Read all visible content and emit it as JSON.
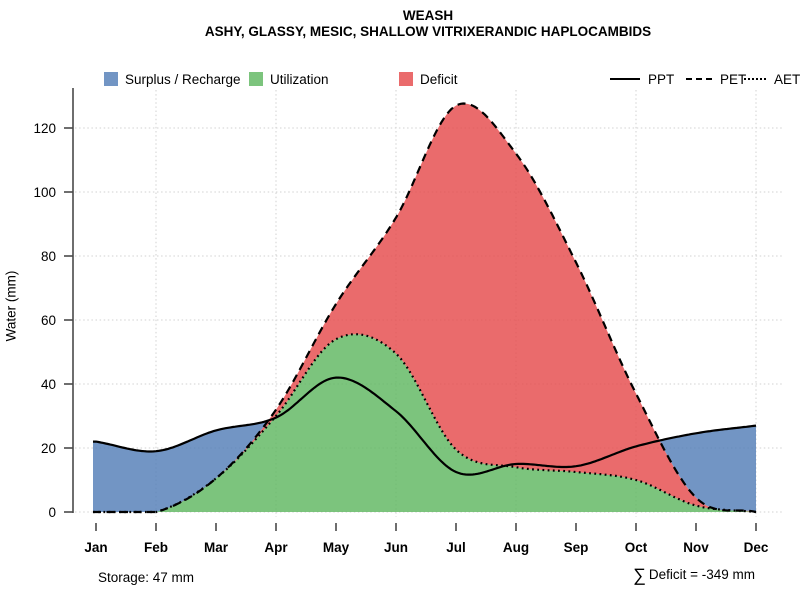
{
  "title": "WEASH",
  "subtitle": "ASHY, GLASSY, MESIC, SHALLOW VITRIXERANDIC HAPLOCAMBIDS",
  "ylabel": "Water (mm)",
  "annotations": {
    "storage": "Storage: 47 mm",
    "deficit_sigma": "∑",
    "deficit_text": "Deficit = -349 mm"
  },
  "legend": {
    "fills": [
      {
        "label": "Surplus / Recharge",
        "color": "#7295C4"
      },
      {
        "label": "Utilization",
        "color": "#7CC47D"
      },
      {
        "label": "Deficit",
        "color": "#EA6B6C"
      }
    ],
    "lines": [
      {
        "label": "PPT",
        "style": "solid"
      },
      {
        "label": "PET",
        "style": "dashed"
      },
      {
        "label": "AET",
        "style": "dotted"
      }
    ]
  },
  "chart_data": {
    "type": "area",
    "title": "WEASH",
    "subtitle": "ASHY, GLASSY, MESIC, SHALLOW VITRIXERANDIC HAPLOCAMBIDS",
    "xlabel": "",
    "ylabel": "Water (mm)",
    "categories": [
      "Jan",
      "Feb",
      "Mar",
      "Apr",
      "May",
      "Jun",
      "Jul",
      "Aug",
      "Sep",
      "Oct",
      "Nov",
      "Dec"
    ],
    "yticks": [
      0,
      20,
      40,
      60,
      80,
      100,
      120
    ],
    "ylim": [
      0,
      135
    ],
    "grid": {
      "horizontal": true,
      "vertical_month_indices": [
        1,
        3,
        5,
        7,
        9,
        11
      ]
    },
    "legend_position": "top",
    "series": [
      {
        "name": "PPT",
        "style": "solid",
        "color": "#000000",
        "values": [
          22,
          19,
          25.5,
          29.5,
          42,
          31.5,
          12.5,
          15,
          14.3,
          20.5,
          24.6,
          27
        ]
      },
      {
        "name": "PET",
        "style": "dashed",
        "color": "#000000",
        "values": [
          0,
          0,
          10.5,
          32,
          65,
          92,
          127,
          112,
          78,
          37,
          4.5,
          0
        ]
      },
      {
        "name": "AET",
        "style": "dotted",
        "color": "#000000",
        "values": [
          0,
          0,
          10.5,
          30,
          54,
          49.5,
          19.5,
          14,
          12.5,
          10,
          2,
          0
        ]
      }
    ],
    "regions": [
      {
        "name": "Utilization",
        "color": "#7CC47D",
        "between": [
          "zero",
          "AET"
        ]
      },
      {
        "name": "Deficit",
        "color": "#EA6B6C",
        "between": [
          "AET",
          "PET"
        ],
        "where": "PET > AET"
      },
      {
        "name": "Surplus / Recharge",
        "color": "#7295C4",
        "between": [
          "PET",
          "PPT"
        ],
        "where": "PPT > PET"
      }
    ],
    "annotations": {
      "storage_mm": 47,
      "sum_deficit_mm": -349
    }
  }
}
